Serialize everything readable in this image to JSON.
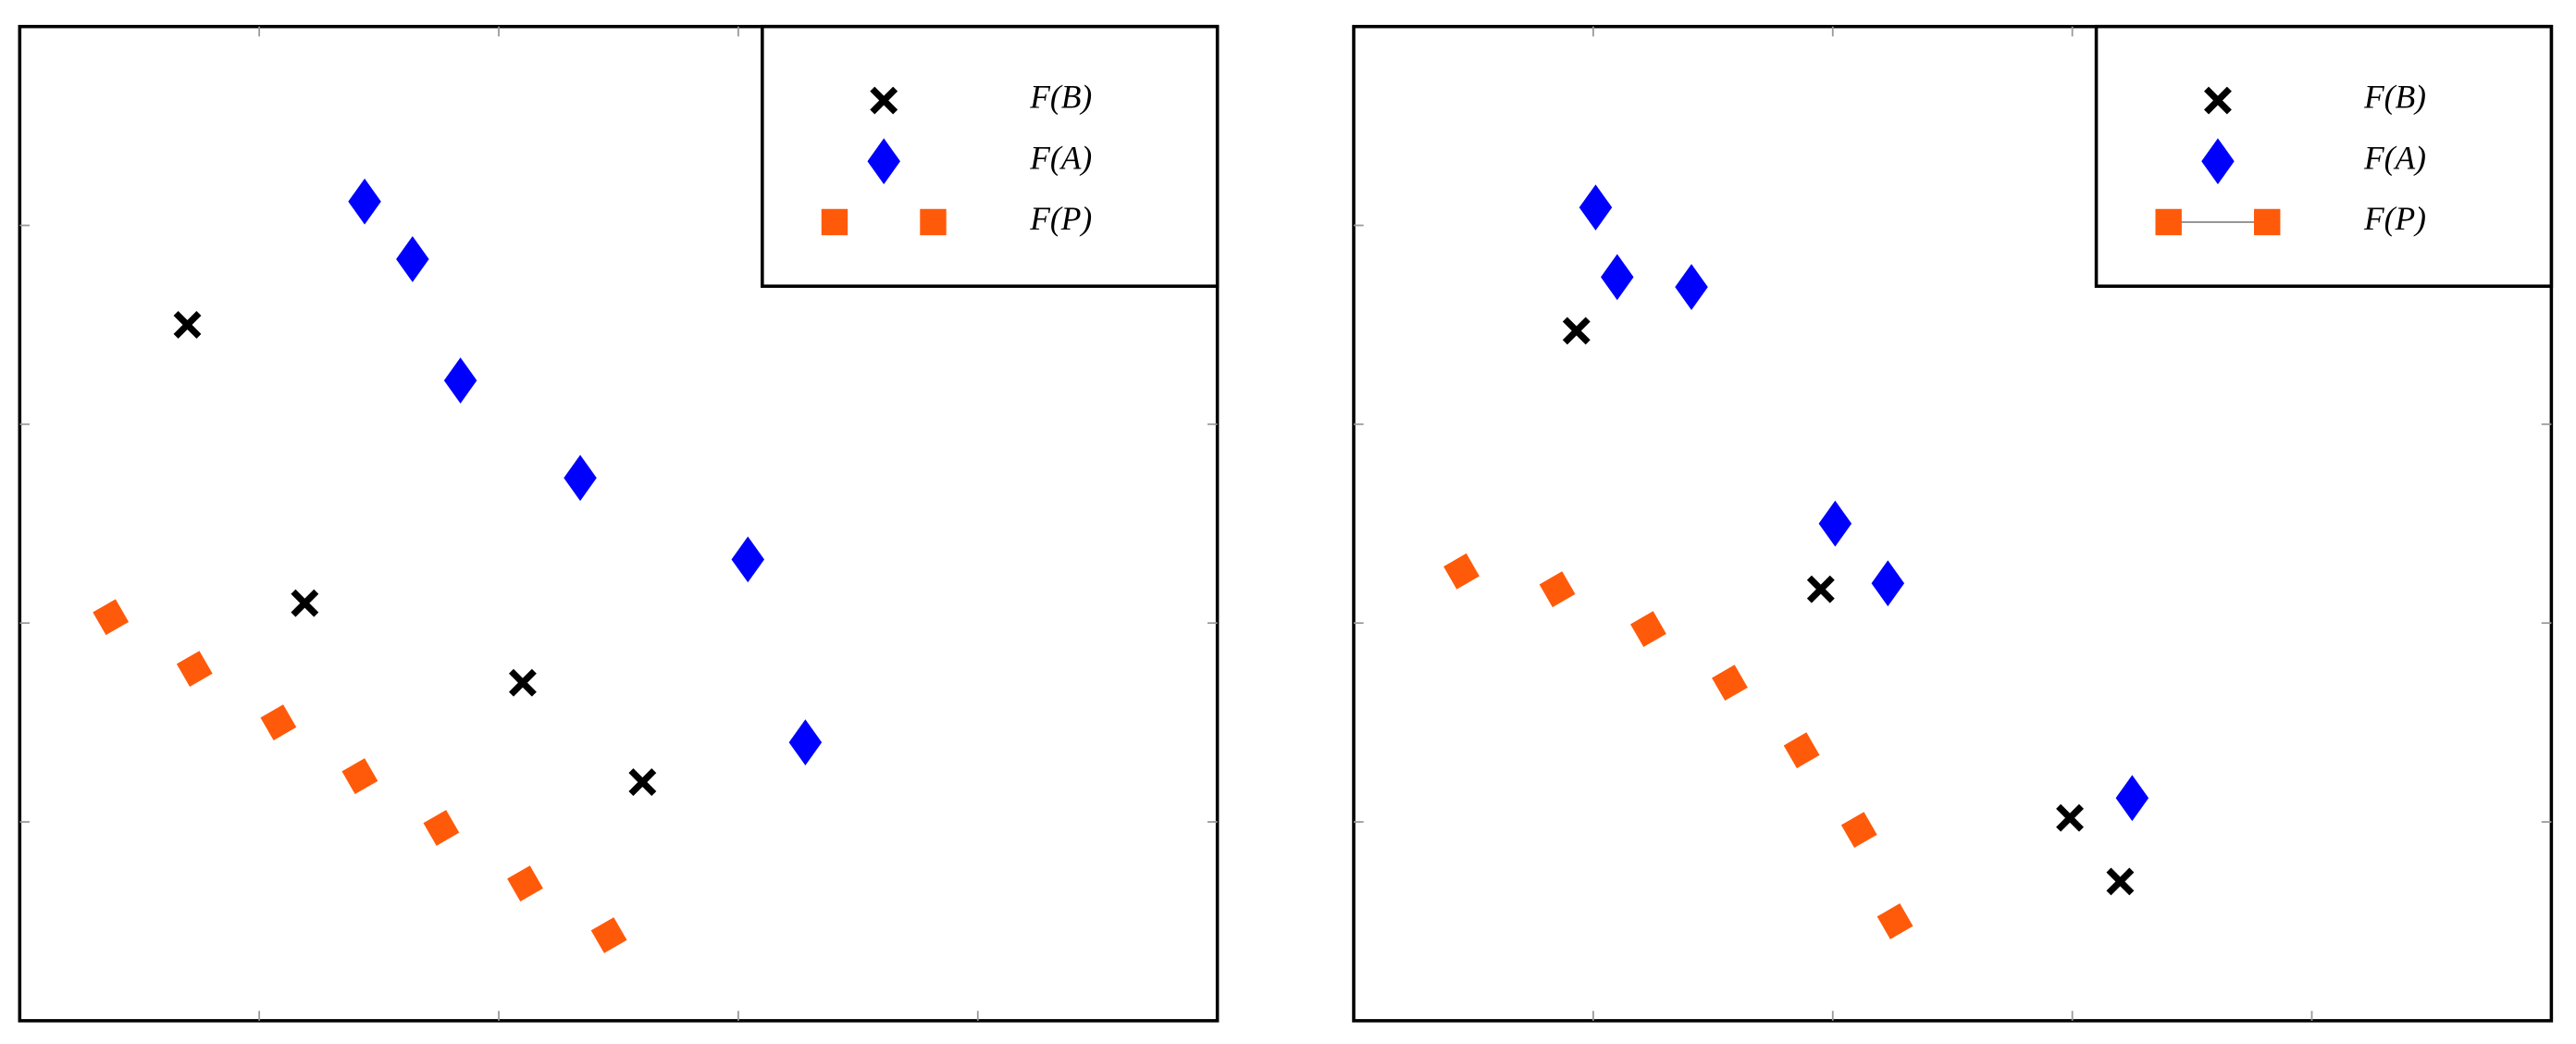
{
  "chart_data": [
    {
      "type": "scatter",
      "xlim": [
        0,
        5
      ],
      "ylim": [
        0,
        5
      ],
      "xticks": [
        1,
        2,
        3,
        4
      ],
      "yticks": [
        1,
        2,
        3,
        4
      ],
      "legend": "upper right",
      "series": [
        {
          "name": "F(B)",
          "color": "#000000",
          "marker": "x",
          "line": false,
          "x": [
            0.7,
            1.19,
            2.1,
            2.6
          ],
          "y": [
            3.5,
            2.1,
            1.7,
            1.2
          ]
        },
        {
          "name": "F(A)",
          "color": "#0000ff",
          "marker": "diamond",
          "line": false,
          "x": [
            1.44,
            1.64,
            1.84,
            2.34,
            3.04,
            3.28
          ],
          "y": [
            4.12,
            3.83,
            3.22,
            2.73,
            2.32,
            1.4
          ]
        },
        {
          "name": "F(P)",
          "color": "#ff5a0a",
          "marker": "square",
          "line": false,
          "x": [
            0.38,
            0.73,
            1.08,
            1.42,
            1.76,
            2.11,
            2.46
          ],
          "y": [
            2.03,
            1.77,
            1.5,
            1.23,
            0.97,
            0.69,
            0.43
          ]
        }
      ]
    },
    {
      "type": "scatter",
      "xlim": [
        0,
        5
      ],
      "ylim": [
        0,
        5
      ],
      "xticks": [
        1,
        2,
        3,
        4
      ],
      "yticks": [
        1,
        2,
        3,
        4
      ],
      "legend": "upper right",
      "series": [
        {
          "name": "F(B)",
          "color": "#000000",
          "marker": "x",
          "line": false,
          "x": [
            0.93,
            1.95,
            2.99,
            3.2
          ],
          "y": [
            3.47,
            2.17,
            1.02,
            0.7
          ]
        },
        {
          "name": "F(A)",
          "color": "#0000ff",
          "marker": "diamond",
          "line": false,
          "x": [
            1.01,
            1.1,
            1.41,
            2.01,
            2.23,
            3.25
          ],
          "y": [
            4.09,
            3.74,
            3.69,
            2.5,
            2.2,
            1.12
          ]
        },
        {
          "name": "F(P)",
          "color": "#ff5a0a",
          "marker": "square",
          "line": true,
          "x": [
            0.45,
            0.85,
            1.23,
            1.57,
            1.87,
            2.11,
            2.26
          ],
          "y": [
            2.26,
            2.17,
            1.97,
            1.7,
            1.36,
            0.96,
            0.5
          ]
        }
      ]
    }
  ]
}
